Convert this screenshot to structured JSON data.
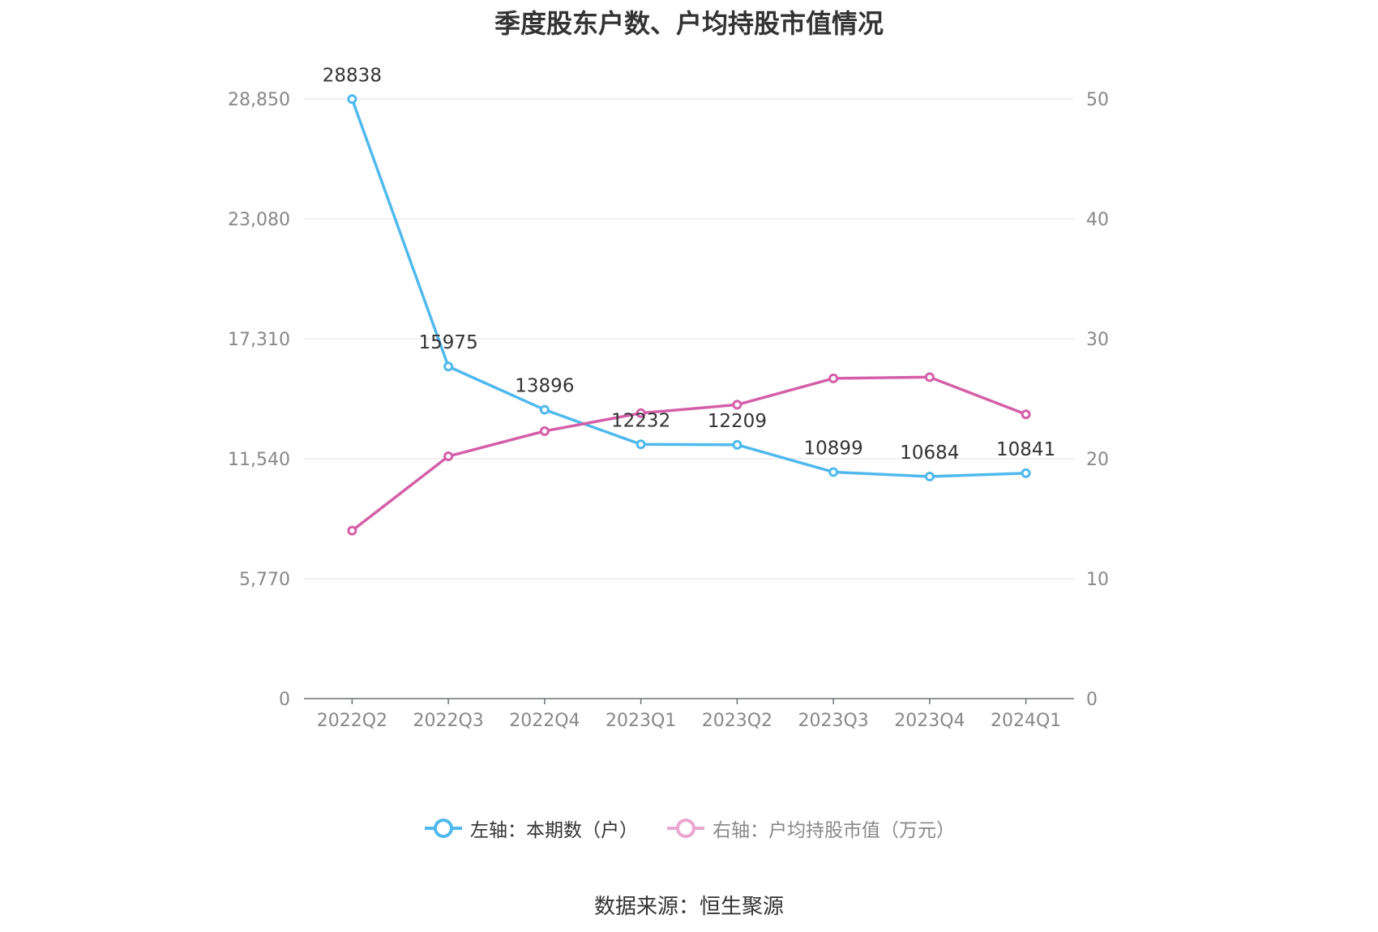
{
  "chart_data": {
    "type": "line",
    "title": "季度股东户数、户均持股市值情况",
    "categories": [
      "2022Q2",
      "2022Q3",
      "2022Q4",
      "2023Q1",
      "2023Q2",
      "2023Q3",
      "2023Q4",
      "2024Q1"
    ],
    "y_left": {
      "ticks": [
        "0",
        "5,770",
        "11,540",
        "17,310",
        "23,080",
        "28,850"
      ],
      "range": [
        0,
        28850
      ]
    },
    "y_right": {
      "ticks": [
        "0",
        "10",
        "20",
        "30",
        "40",
        "50"
      ],
      "range": [
        0,
        50
      ]
    },
    "series": [
      {
        "name": "左轴：本期数（户）",
        "axis": "left",
        "color": "#4fb9ee",
        "values": [
          28838,
          15975,
          13896,
          12232,
          12209,
          10899,
          10684,
          10841
        ],
        "labels": [
          "28838",
          "15975",
          "13896",
          "12232",
          "12209",
          "10899",
          "10684",
          "10841"
        ]
      },
      {
        "name": "右轴：户均持股市值（万元）",
        "axis": "right",
        "color": "#d45fa8",
        "values": [
          14.0,
          20.2,
          22.3,
          23.8,
          24.5,
          26.7,
          26.8,
          23.7
        ]
      }
    ],
    "grid": true,
    "legend_position": "bottom"
  },
  "source": "数据来源：恒生聚源",
  "legend": {
    "left_label": "左轴：本期数（户）",
    "right_label": "右轴：户均持股市值（万元）",
    "left_color": "#4fb9ee",
    "right_color": "#e9a6cf"
  }
}
